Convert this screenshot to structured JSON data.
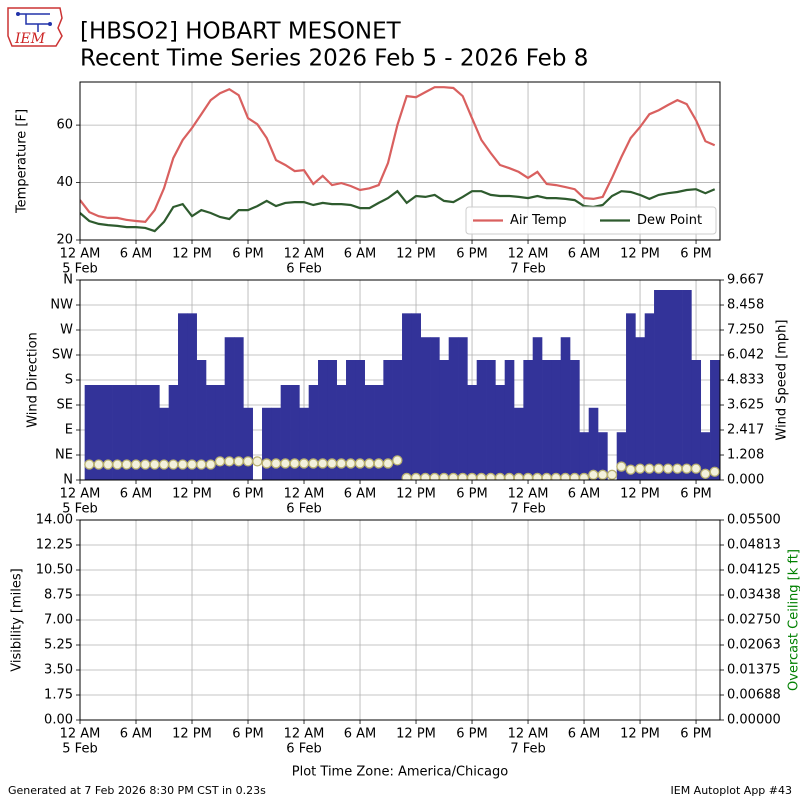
{
  "header": {
    "title": "[HBSO2] HOBART MESONET",
    "subtitle": "Recent Time Series 2026 Feb 5 - 2026 Feb 8",
    "logo": "IEM"
  },
  "footer": {
    "generated": "Generated at 7 Feb 2026 8:30 PM CST in 0.23s",
    "app": "IEM Autoplot App #43",
    "timezone": "Plot Time Zone: America/Chicago"
  },
  "chart_data": [
    {
      "type": "line",
      "ylabel": "Temperature [F]",
      "grid": true,
      "legend": "lower right",
      "xlim": [
        "2026-02-05T00:00",
        "2026-02-07T20:34"
      ],
      "xticks": [
        {
          "value": "2026-02-05T00:00",
          "label": "12 AM"
        },
        {
          "value": "2026-02-05T06:00",
          "label": "6 AM"
        },
        {
          "value": "2026-02-05T12:00",
          "label": "12 PM"
        },
        {
          "value": "2026-02-05T18:00",
          "label": "6 PM"
        },
        {
          "value": "2026-02-06T00:00",
          "label": "12 AM"
        },
        {
          "value": "2026-02-06T06:00",
          "label": "6 AM"
        },
        {
          "value": "2026-02-06T12:00",
          "label": "12 PM"
        },
        {
          "value": "2026-02-06T18:00",
          "label": "6 PM"
        },
        {
          "value": "2026-02-07T00:00",
          "label": "12 AM"
        },
        {
          "value": "2026-02-07T06:00",
          "label": "6 AM"
        },
        {
          "value": "2026-02-07T12:00",
          "label": "12 PM"
        },
        {
          "value": "2026-02-07T18:00",
          "label": "6 PM"
        }
      ],
      "xtick_dates": [
        {
          "value": "2026-02-05T00:00",
          "label": "5 Feb"
        },
        {
          "value": "2026-02-06T00:00",
          "label": "6 Feb"
        },
        {
          "value": "2026-02-07T00:00",
          "label": "7 Feb"
        }
      ],
      "ylim": [
        20,
        75
      ],
      "yticks": [
        20,
        40,
        60
      ],
      "x": [
        "2026-02-05T00:00",
        "2026-02-05T01:00",
        "2026-02-05T02:00",
        "2026-02-05T03:00",
        "2026-02-05T04:00",
        "2026-02-05T05:00",
        "2026-02-05T06:00",
        "2026-02-05T07:00",
        "2026-02-05T08:00",
        "2026-02-05T09:00",
        "2026-02-05T10:00",
        "2026-02-05T11:00",
        "2026-02-05T12:00",
        "2026-02-05T13:00",
        "2026-02-05T14:00",
        "2026-02-05T15:00",
        "2026-02-05T16:00",
        "2026-02-05T17:00",
        "2026-02-05T18:00",
        "2026-02-05T19:00",
        "2026-02-05T20:00",
        "2026-02-05T21:00",
        "2026-02-05T22:00",
        "2026-02-05T23:00",
        "2026-02-06T00:00",
        "2026-02-06T01:00",
        "2026-02-06T02:00",
        "2026-02-06T03:00",
        "2026-02-06T04:00",
        "2026-02-06T05:00",
        "2026-02-06T06:00",
        "2026-02-06T07:00",
        "2026-02-06T08:00",
        "2026-02-06T09:00",
        "2026-02-06T10:00",
        "2026-02-06T11:00",
        "2026-02-06T12:00",
        "2026-02-06T13:00",
        "2026-02-06T14:00",
        "2026-02-06T15:00",
        "2026-02-06T16:00",
        "2026-02-06T17:00",
        "2026-02-06T18:00",
        "2026-02-06T19:00",
        "2026-02-06T20:00",
        "2026-02-06T21:00",
        "2026-02-06T22:00",
        "2026-02-06T23:00",
        "2026-02-07T00:00",
        "2026-02-07T01:00",
        "2026-02-07T02:00",
        "2026-02-07T03:00",
        "2026-02-07T04:00",
        "2026-02-07T05:00",
        "2026-02-07T06:00",
        "2026-02-07T07:00",
        "2026-02-07T08:00",
        "2026-02-07T09:00",
        "2026-02-07T10:00",
        "2026-02-07T11:00",
        "2026-02-07T12:00",
        "2026-02-07T13:00",
        "2026-02-07T14:00",
        "2026-02-07T15:00",
        "2026-02-07T16:00",
        "2026-02-07T17:00",
        "2026-02-07T18:00",
        "2026-02-07T19:00",
        "2026-02-07T20:00"
      ],
      "series": [
        {
          "name": "Air Temp",
          "color": "#d9605f",
          "values": [
            33.9,
            29.7,
            28.3,
            27.7,
            27.7,
            27,
            26.6,
            26.3,
            30.4,
            38,
            48.5,
            54.8,
            59,
            63.8,
            68.7,
            71.1,
            72.5,
            70.4,
            62.4,
            60.3,
            55.5,
            47.8,
            46.1,
            44,
            44.3,
            39.5,
            42.3,
            39.1,
            39.8,
            38.8,
            37.4,
            38,
            39.1,
            46.8,
            60,
            70.1,
            69.7,
            71.5,
            73.2,
            73.2,
            72.9,
            70.1,
            62.4,
            54.8,
            50.3,
            46.1,
            45,
            43.7,
            41.6,
            43.7,
            39.5,
            39.1,
            38.4,
            37.7,
            34.6,
            34.3,
            35,
            41.6,
            48.9,
            55.5,
            59.3,
            63.8,
            65.2,
            67,
            68.7,
            67.3,
            61.7,
            54.4,
            53
          ]
        },
        {
          "name": "Dew Point",
          "color": "#2e5b2e",
          "values": [
            29.4,
            26.6,
            25.6,
            25.2,
            24.9,
            24.5,
            24.5,
            24.2,
            23.1,
            26.3,
            31.5,
            32.5,
            28.3,
            30.4,
            29.4,
            28,
            27.3,
            30.4,
            30.4,
            31.8,
            33.6,
            31.8,
            32.9,
            33.2,
            33.2,
            32.2,
            32.9,
            32.5,
            32.5,
            32.2,
            31.1,
            31.1,
            32.9,
            34.6,
            37,
            32.9,
            35.3,
            35,
            35.7,
            33.6,
            33.2,
            35,
            37,
            37,
            35.7,
            35.3,
            35.3,
            35,
            34.6,
            35.3,
            34.6,
            34.6,
            34.3,
            33.9,
            31.8,
            31.5,
            32.2,
            35.3,
            37,
            36.7,
            35.7,
            34.3,
            35.7,
            36.3,
            36.7,
            37.4,
            37.7,
            36.3,
            37.7
          ]
        }
      ]
    },
    {
      "type": "bar",
      "ylabel": "Wind Direction",
      "y2label": "Wind Speed [mph]",
      "grid": true,
      "xlim": [
        "2026-02-05T00:00",
        "2026-02-07T20:34"
      ],
      "xticks": [
        {
          "value": "2026-02-05T00:00",
          "label": "12 AM"
        },
        {
          "value": "2026-02-05T06:00",
          "label": "6 AM"
        },
        {
          "value": "2026-02-05T12:00",
          "label": "12 PM"
        },
        {
          "value": "2026-02-05T18:00",
          "label": "6 PM"
        },
        {
          "value": "2026-02-06T00:00",
          "label": "12 AM"
        },
        {
          "value": "2026-02-06T06:00",
          "label": "6 AM"
        },
        {
          "value": "2026-02-06T12:00",
          "label": "12 PM"
        },
        {
          "value": "2026-02-06T18:00",
          "label": "6 PM"
        },
        {
          "value": "2026-02-07T00:00",
          "label": "12 AM"
        },
        {
          "value": "2026-02-07T06:00",
          "label": "6 AM"
        },
        {
          "value": "2026-02-07T12:00",
          "label": "12 PM"
        },
        {
          "value": "2026-02-07T18:00",
          "label": "6 PM"
        }
      ],
      "xtick_dates": [
        {
          "value": "2026-02-05T00:00",
          "label": "5 Feb"
        },
        {
          "value": "2026-02-06T00:00",
          "label": "6 Feb"
        },
        {
          "value": "2026-02-07T00:00",
          "label": "7 Feb"
        }
      ],
      "ylim": [
        0,
        360
      ],
      "yticks": [
        {
          "value": 0,
          "label": "N"
        },
        {
          "value": 45,
          "label": "NE"
        },
        {
          "value": 90,
          "label": "E"
        },
        {
          "value": 135,
          "label": "SE"
        },
        {
          "value": 180,
          "label": "S"
        },
        {
          "value": 225,
          "label": "SW"
        },
        {
          "value": 270,
          "label": "W"
        },
        {
          "value": 315,
          "label": "NW"
        },
        {
          "value": 360,
          "label": "N"
        }
      ],
      "y2lim": [
        0,
        9.667
      ],
      "y2ticks": [
        {
          "value": 0,
          "label": "0.000"
        },
        1.208,
        2.417,
        3.625,
        4.833,
        6.042,
        {
          "value": 7.25,
          "label": "7.250"
        },
        8.458,
        9.667
      ],
      "x": [
        "2026-02-05T01:00",
        "2026-02-05T02:00",
        "2026-02-05T03:00",
        "2026-02-05T04:00",
        "2026-02-05T05:00",
        "2026-02-05T06:00",
        "2026-02-05T07:00",
        "2026-02-05T08:00",
        "2026-02-05T09:00",
        "2026-02-05T10:00",
        "2026-02-05T11:00",
        "2026-02-05T12:00",
        "2026-02-05T13:00",
        "2026-02-05T14:00",
        "2026-02-05T15:00",
        "2026-02-05T16:00",
        "2026-02-05T17:00",
        "2026-02-05T18:00",
        "2026-02-05T19:00",
        "2026-02-05T20:00",
        "2026-02-05T21:00",
        "2026-02-05T22:00",
        "2026-02-05T23:00",
        "2026-02-06T00:00",
        "2026-02-06T01:00",
        "2026-02-06T02:00",
        "2026-02-06T03:00",
        "2026-02-06T04:00",
        "2026-02-06T05:00",
        "2026-02-06T06:00",
        "2026-02-06T07:00",
        "2026-02-06T08:00",
        "2026-02-06T09:00",
        "2026-02-06T10:00",
        "2026-02-06T11:00",
        "2026-02-06T12:00",
        "2026-02-06T13:00",
        "2026-02-06T14:00",
        "2026-02-06T15:00",
        "2026-02-06T16:00",
        "2026-02-06T17:00",
        "2026-02-06T18:00",
        "2026-02-06T19:00",
        "2026-02-06T20:00",
        "2026-02-06T21:00",
        "2026-02-06T22:00",
        "2026-02-06T23:00",
        "2026-02-07T00:00",
        "2026-02-07T01:00",
        "2026-02-07T02:00",
        "2026-02-07T03:00",
        "2026-02-07T04:00",
        "2026-02-07T05:00",
        "2026-02-07T06:00",
        "2026-02-07T07:00",
        "2026-02-07T08:00",
        "2026-02-07T09:00",
        "2026-02-07T10:00",
        "2026-02-07T11:00",
        "2026-02-07T12:00",
        "2026-02-07T13:00",
        "2026-02-07T14:00",
        "2026-02-07T15:00",
        "2026-02-07T16:00",
        "2026-02-07T17:00",
        "2026-02-07T18:00",
        "2026-02-07T19:00",
        "2026-02-07T20:00"
      ],
      "series": [
        {
          "type": "bar",
          "color": "#333399",
          "values": [
            171,
            171,
            171,
            171,
            171,
            171,
            171,
            171,
            130,
            171,
            300,
            300,
            216,
            171,
            171,
            257,
            257,
            130,
            null,
            130,
            130,
            171,
            171,
            130,
            171,
            216,
            216,
            171,
            216,
            216,
            171,
            171,
            216,
            216,
            300,
            300,
            257,
            257,
            216,
            257,
            257,
            171,
            216,
            216,
            171,
            216,
            130,
            216,
            257,
            216,
            216,
            257,
            216,
            86,
            130,
            86,
            null,
            86,
            300,
            257,
            300,
            342,
            342,
            342,
            342,
            216,
            86,
            216
          ]
        },
        {
          "type": "scatter",
          "axis": "y2",
          "color": "#b8b070",
          "values": [
            0.75,
            0.75,
            0.75,
            0.75,
            0.75,
            0.75,
            0.75,
            0.75,
            0.75,
            0.75,
            0.75,
            0.75,
            0.75,
            0.75,
            0.9,
            0.9,
            0.9,
            0.9,
            0.9,
            0.8,
            0.8,
            0.8,
            0.8,
            0.8,
            0.8,
            0.8,
            0.8,
            0.8,
            0.8,
            0.8,
            0.8,
            0.8,
            0.8,
            0.95,
            0.1,
            0.1,
            0.1,
            0.1,
            0.1,
            0.1,
            0.1,
            0.1,
            0.1,
            0.1,
            0.1,
            0.1,
            0.1,
            0.1,
            0.1,
            0.1,
            0.1,
            0.1,
            0.1,
            0.1,
            0.25,
            0.25,
            0.25,
            0.65,
            0.5,
            0.55,
            0.55,
            0.55,
            0.55,
            0.55,
            0.55,
            0.55,
            0.3,
            0.4
          ]
        }
      ]
    },
    {
      "type": "line",
      "ylabel": "Visibility [miles]",
      "y2label": "Overcast Ceiling [k ft]",
      "y2color": "#008000",
      "grid": true,
      "xlim": [
        "2026-02-05T00:00",
        "2026-02-07T20:34"
      ],
      "xticks": [
        {
          "value": "2026-02-05T00:00",
          "label": "12 AM"
        },
        {
          "value": "2026-02-05T06:00",
          "label": "6 AM"
        },
        {
          "value": "2026-02-05T12:00",
          "label": "12 PM"
        },
        {
          "value": "2026-02-05T18:00",
          "label": "6 PM"
        },
        {
          "value": "2026-02-06T00:00",
          "label": "12 AM"
        },
        {
          "value": "2026-02-06T06:00",
          "label": "6 AM"
        },
        {
          "value": "2026-02-06T12:00",
          "label": "12 PM"
        },
        {
          "value": "2026-02-06T18:00",
          "label": "6 PM"
        },
        {
          "value": "2026-02-07T00:00",
          "label": "12 AM"
        },
        {
          "value": "2026-02-07T06:00",
          "label": "6 AM"
        },
        {
          "value": "2026-02-07T12:00",
          "label": "12 PM"
        },
        {
          "value": "2026-02-07T18:00",
          "label": "6 PM"
        }
      ],
      "xtick_dates": [
        {
          "value": "2026-02-05T00:00",
          "label": "5 Feb"
        },
        {
          "value": "2026-02-06T00:00",
          "label": "6 Feb"
        },
        {
          "value": "2026-02-07T00:00",
          "label": "7 Feb"
        }
      ],
      "ylim": [
        0,
        14
      ],
      "yticks": [
        {
          "value": 0,
          "label": "0.00"
        },
        1.75,
        {
          "value": 3.5,
          "label": "3.50"
        },
        5.25,
        {
          "value": 7,
          "label": "7.00"
        },
        8.75,
        {
          "value": 10.5,
          "label": "10.50"
        },
        12.25,
        {
          "value": 14,
          "label": "14.00"
        }
      ],
      "y2lim": [
        0,
        0.055
      ],
      "y2ticks": [
        {
          "value": 0,
          "label": "0.00000"
        },
        {
          "value": 0.006875,
          "label": "0.00688"
        },
        0.01375,
        {
          "value": 0.020625,
          "label": "0.02063"
        },
        {
          "value": 0.0275,
          "label": "0.02750"
        },
        {
          "value": 0.034375,
          "label": "0.03438"
        },
        0.04125,
        {
          "value": 0.048125,
          "label": "0.04813"
        },
        {
          "value": 0.055,
          "label": "0.05500"
        }
      ],
      "x": [],
      "series": []
    }
  ]
}
